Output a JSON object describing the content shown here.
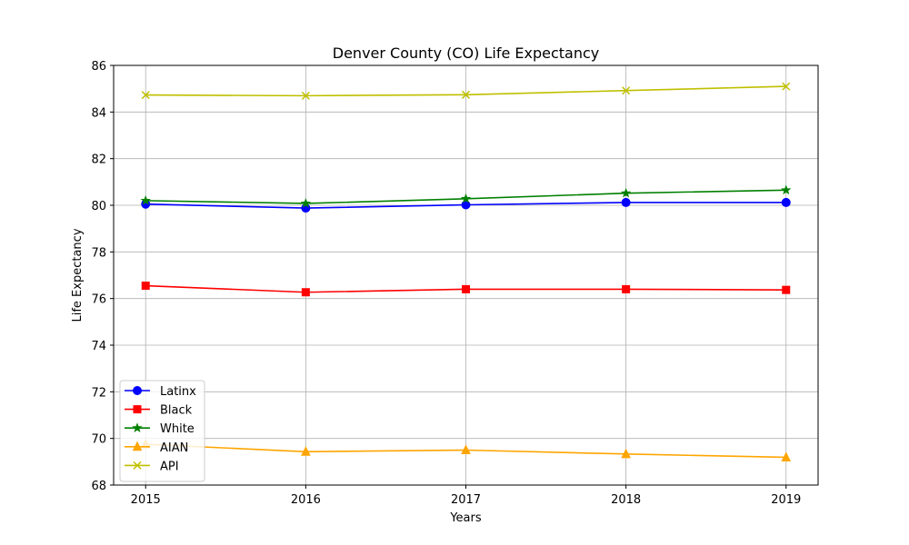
{
  "chart_data": {
    "type": "line",
    "title": "Denver County (CO) Life Expectancy",
    "xlabel": "Years",
    "ylabel": "Life Expectancy",
    "x": [
      2015,
      2016,
      2017,
      2018,
      2019
    ],
    "x_tick_labels": [
      "2015",
      "2016",
      "2017",
      "2018",
      "2019"
    ],
    "ylim": [
      68,
      86
    ],
    "y_ticks": [
      68,
      70,
      72,
      74,
      76,
      78,
      80,
      82,
      84,
      86
    ],
    "y_tick_labels": [
      "68",
      "70",
      "72",
      "74",
      "76",
      "78",
      "80",
      "82",
      "84",
      "86"
    ],
    "grid": true,
    "legend_position": "lower-left",
    "series": [
      {
        "name": "Latinx",
        "color": "#0000ff",
        "marker": "circle",
        "values": [
          80.05,
          79.88,
          80.02,
          80.12,
          80.12
        ]
      },
      {
        "name": "Black",
        "color": "#ff0000",
        "marker": "square",
        "values": [
          76.55,
          76.27,
          76.4,
          76.4,
          76.37
        ]
      },
      {
        "name": "White",
        "color": "#008000",
        "marker": "star",
        "values": [
          80.2,
          80.08,
          80.28,
          80.52,
          80.65
        ]
      },
      {
        "name": "AIAN",
        "color": "#ffa500",
        "marker": "triangle",
        "values": [
          69.75,
          69.43,
          69.5,
          69.33,
          69.19
        ]
      },
      {
        "name": "API",
        "color": "#bfbf00",
        "marker": "x",
        "values": [
          84.73,
          84.7,
          84.74,
          84.92,
          85.1
        ]
      }
    ]
  }
}
